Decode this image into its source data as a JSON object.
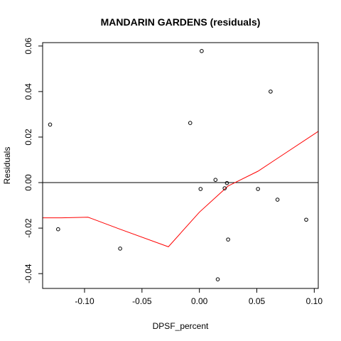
{
  "chart_data": {
    "type": "scatter",
    "title": "MANDARIN GARDENS (residuals)",
    "xlabel": "DPSF_percent",
    "ylabel": "Residuals",
    "xlim": [
      -0.1365,
      0.1035
    ],
    "ylim": [
      -0.0465,
      0.0615
    ],
    "x_ticks": [
      -0.1,
      -0.05,
      0.0,
      0.05,
      0.1
    ],
    "x_tick_labels": [
      "-0.10",
      "-0.05",
      "0.00",
      "0.05",
      "0.10"
    ],
    "y_ticks": [
      -0.04,
      -0.02,
      0.0,
      0.02,
      0.04,
      0.06
    ],
    "y_tick_labels": [
      "-0.04",
      "-0.02",
      "0.00",
      "0.02",
      "0.04",
      "0.06"
    ],
    "grid": false,
    "reference_line_y": 0,
    "reference_line_color": "#000000",
    "point_color": "#000000",
    "points": {
      "x": [
        -0.13,
        -0.123,
        -0.069,
        -0.008,
        0.001,
        0.002,
        0.014,
        0.016,
        0.022,
        0.024,
        0.025,
        0.051,
        0.062,
        0.068,
        0.093
      ],
      "y": [
        0.0255,
        -0.0205,
        -0.029,
        0.0262,
        -0.0028,
        0.0578,
        0.0012,
        -0.0425,
        -0.0025,
        -0.0002,
        -0.025,
        -0.0028,
        0.04,
        -0.0075,
        -0.0163
      ]
    },
    "smooth_line_color": "#ff0000",
    "smooth_line": {
      "x": [
        -0.1365,
        -0.12,
        -0.097,
        -0.069,
        -0.027,
        0.0,
        0.025,
        0.051,
        0.075,
        0.1035
      ],
      "y": [
        -0.0155,
        -0.0155,
        -0.0152,
        -0.0205,
        -0.0282,
        -0.013,
        -0.0015,
        0.005,
        0.013,
        0.0225
      ]
    }
  }
}
